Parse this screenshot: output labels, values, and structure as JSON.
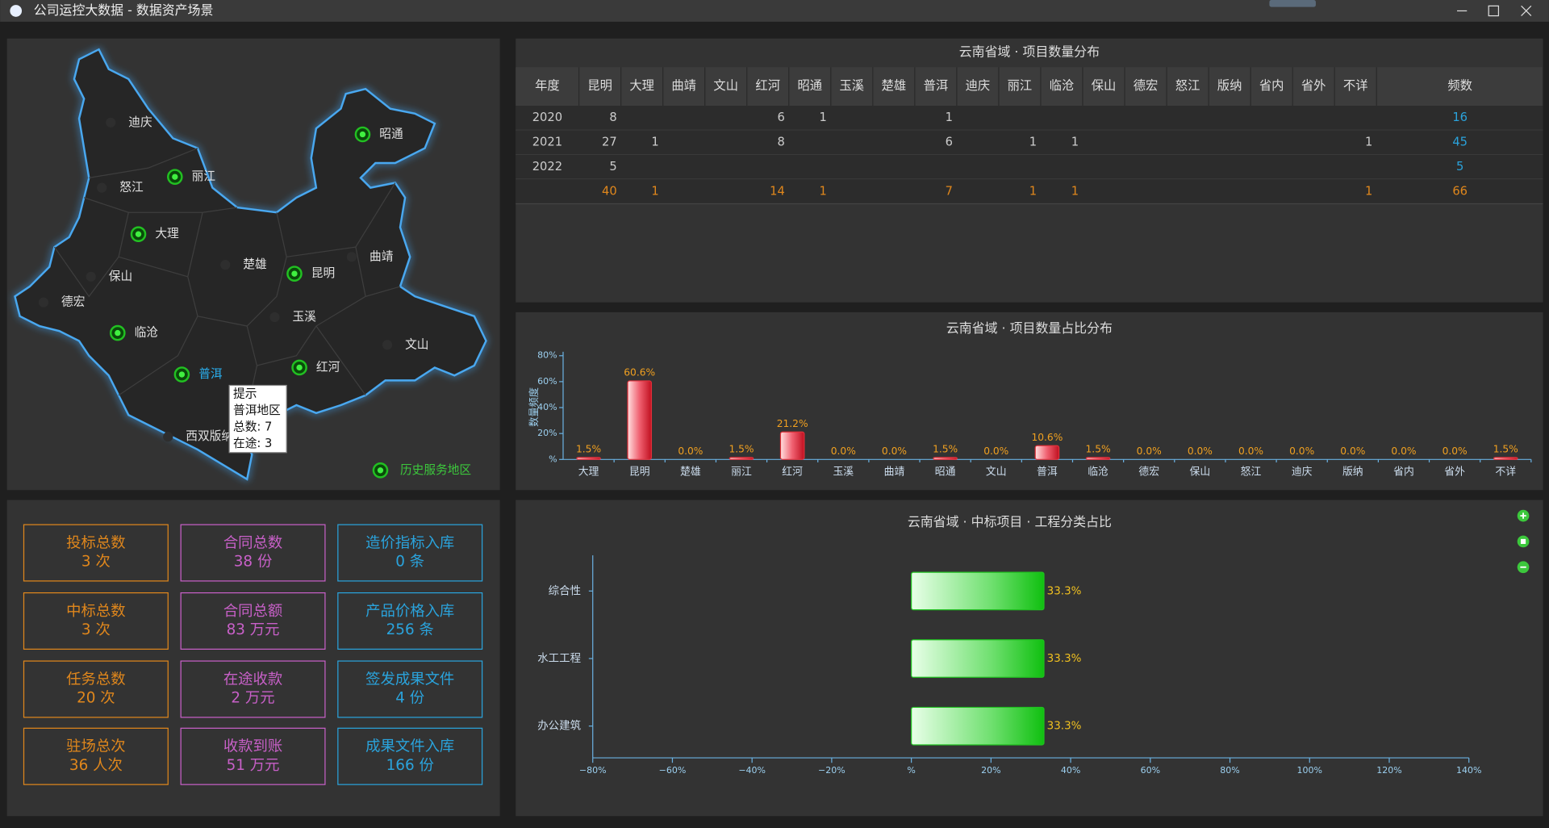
{
  "window": {
    "title": "公司运控大数据 - 数据资产场景"
  },
  "map": {
    "cities": [
      {
        "name": "迪庆",
        "served": false
      },
      {
        "name": "昭通",
        "served": true
      },
      {
        "name": "丽江",
        "served": true
      },
      {
        "name": "怒江",
        "served": false
      },
      {
        "name": "大理",
        "served": true
      },
      {
        "name": "楚雄",
        "served": false
      },
      {
        "name": "昆明",
        "served": true
      },
      {
        "name": "曲靖",
        "served": false
      },
      {
        "name": "保山",
        "served": false
      },
      {
        "name": "德宏",
        "served": false
      },
      {
        "name": "玉溪",
        "served": false
      },
      {
        "name": "临沧",
        "served": true
      },
      {
        "name": "文山",
        "served": false
      },
      {
        "name": "普洱",
        "served": true,
        "selected": true
      },
      {
        "name": "红河",
        "served": true
      },
      {
        "name": "西双版纳",
        "served": false
      }
    ],
    "legend": "历史服务地区",
    "tooltip": [
      "提示",
      "普洱地区",
      "总数: 7",
      "在途: 3"
    ]
  },
  "table": {
    "title": "云南省域 · 项目数量分布",
    "headers": [
      "年度",
      "昆明",
      "大理",
      "曲靖",
      "文山",
      "红河",
      "昭通",
      "玉溪",
      "楚雄",
      "普洱",
      "迪庆",
      "丽江",
      "临沧",
      "保山",
      "德宏",
      "怒江",
      "版纳",
      "省内",
      "省外",
      "不详",
      "频数"
    ],
    "rows": [
      [
        2020,
        8,
        null,
        null,
        null,
        6,
        1,
        null,
        null,
        1,
        null,
        null,
        null,
        null,
        null,
        null,
        null,
        null,
        null,
        null,
        16
      ],
      [
        2021,
        27,
        1,
        null,
        null,
        8,
        null,
        null,
        null,
        6,
        null,
        1,
        1,
        null,
        null,
        null,
        null,
        null,
        null,
        1,
        45
      ],
      [
        2022,
        5,
        null,
        null,
        null,
        null,
        null,
        null,
        null,
        null,
        null,
        null,
        null,
        null,
        null,
        null,
        null,
        null,
        null,
        null,
        5
      ],
      [
        null,
        40,
        1,
        null,
        null,
        14,
        1,
        null,
        null,
        7,
        null,
        1,
        1,
        null,
        null,
        null,
        null,
        null,
        null,
        1,
        66
      ]
    ]
  },
  "chart_data": [
    {
      "type": "bar",
      "title": "云南省域 · 项目数量占比分布",
      "y_label": "数量频度",
      "categories": [
        "大理",
        "昆明",
        "楚雄",
        "丽江",
        "红河",
        "玉溪",
        "曲靖",
        "昭通",
        "文山",
        "普洱",
        "临沧",
        "德宏",
        "保山",
        "怒江",
        "迪庆",
        "版纳",
        "省内",
        "省外",
        "不详"
      ],
      "values": [
        1.5,
        60.6,
        0,
        1.5,
        21.2,
        0,
        0,
        1.5,
        0,
        10.6,
        1.5,
        0,
        0,
        0,
        0,
        0,
        0,
        0,
        1.5
      ],
      "value_labels": [
        "1.5%",
        "60.6%",
        "0.0%",
        "1.5%",
        "21.2%",
        "0.0%",
        "0.0%",
        "1.5%",
        "0.0%",
        "10.6%",
        "1.5%",
        "0.0%",
        "0.0%",
        "0.0%",
        "0.0%",
        "0.0%",
        "0.0%",
        "0.0%",
        "1.5%"
      ],
      "color": "#e0303a",
      "ylim": [
        0,
        80
      ],
      "yticks": [
        {
          "value": 0,
          "label": "%"
        },
        {
          "value": 20,
          "label": "20%"
        },
        {
          "value": 40,
          "label": "40%"
        },
        {
          "value": 60,
          "label": "60%"
        },
        {
          "value": 80,
          "label": "80%"
        }
      ]
    },
    {
      "type": "barh",
      "title": "云南省域 · 中标项目 · 工程分类占比",
      "categories": [
        "综合性",
        "水工工程",
        "办公建筑"
      ],
      "values": [
        33.3,
        33.3,
        33.3
      ],
      "value_labels": [
        "33.3%",
        "33.3%",
        "33.3%"
      ],
      "color": "#20c020",
      "xlim": [
        -80,
        140
      ],
      "xticks": [
        {
          "value": -80,
          "label": "−80%"
        },
        {
          "value": -60,
          "label": "−60%"
        },
        {
          "value": -40,
          "label": "−40%"
        },
        {
          "value": -20,
          "label": "−20%"
        },
        {
          "value": 0,
          "label": "%"
        },
        {
          "value": 20,
          "label": "20%"
        },
        {
          "value": 40,
          "label": "40%"
        },
        {
          "value": 60,
          "label": "60%"
        },
        {
          "value": 80,
          "label": "80%"
        },
        {
          "value": 100,
          "label": "100%"
        },
        {
          "value": 120,
          "label": "120%"
        },
        {
          "value": 140,
          "label": "140%"
        }
      ]
    }
  ],
  "cards": [
    {
      "label": "投标总数",
      "value": "3 次",
      "color": "#e0871c"
    },
    {
      "label": "合同总数",
      "value": "38 份",
      "color": "#c860c8"
    },
    {
      "label": "造价指标入库",
      "value": "0 条",
      "color": "#2aa3dc"
    },
    {
      "label": "中标总数",
      "value": "3 次",
      "color": "#e0871c"
    },
    {
      "label": "合同总额",
      "value": "83 万元",
      "color": "#c860c8"
    },
    {
      "label": "产品价格入库",
      "value": "256 条",
      "color": "#2aa3dc"
    },
    {
      "label": "任务总数",
      "value": "20 次",
      "color": "#e0871c"
    },
    {
      "label": "在途收款",
      "value": "2 万元",
      "color": "#c860c8"
    },
    {
      "label": "签发成果文件",
      "value": "4 份",
      "color": "#2aa3dc"
    },
    {
      "label": "驻场总次",
      "value": "36 人次",
      "color": "#e0871c"
    },
    {
      "label": "收款到账",
      "value": "51 万元",
      "color": "#c860c8"
    },
    {
      "label": "成果文件入库",
      "value": "166 份",
      "color": "#2aa3dc"
    }
  ]
}
